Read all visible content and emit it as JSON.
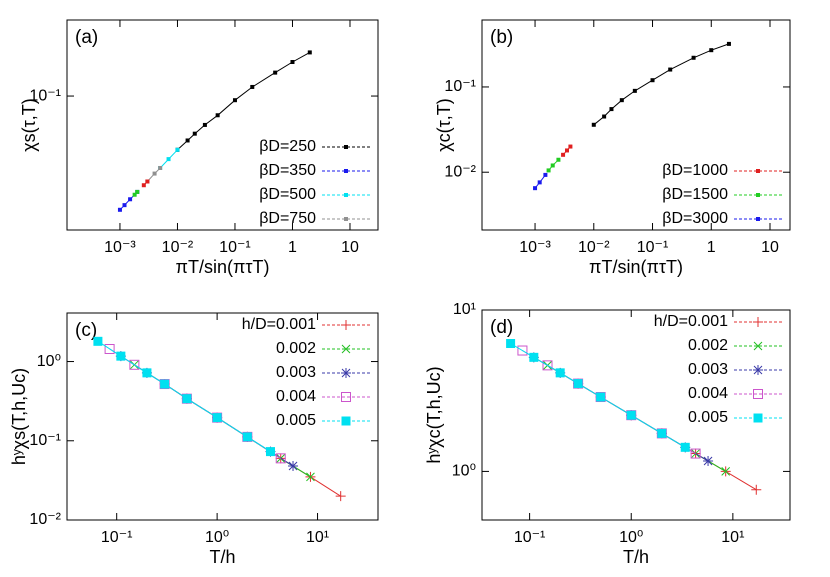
{
  "chart_data": [
    {
      "type": "line",
      "label": "(a)",
      "xlabel": "πT/sin(πτT)",
      "ylabel": "χs(τ,T)",
      "xscale": "log",
      "yscale": "log",
      "xlim": [
        0.00012,
        30.7
      ],
      "ylim": [
        0.0068,
        0.46
      ],
      "xticks": [
        {
          "value": 0.001,
          "label": "10⁻³"
        },
        {
          "value": 0.01,
          "label": "10⁻²"
        },
        {
          "value": 0.1,
          "label": "10⁻¹"
        },
        1,
        10
      ],
      "yticks": [
        {
          "value": 0.1,
          "label": "10⁻¹"
        }
      ],
      "legend": "lower right",
      "series": [
        {
          "name": "βD=250",
          "color": "#000000",
          "marker": "square",
          "x": [
            0.01,
            0.015,
            0.02,
            0.03,
            0.05,
            0.1,
            0.2,
            0.5,
            1,
            2
          ],
          "values": [
            0.034,
            0.041,
            0.047,
            0.056,
            0.068,
            0.092,
            0.12,
            0.16,
            0.198,
            0.24
          ]
        },
        {
          "name": "βD=350",
          "color": "#1a1aee",
          "marker": "square",
          "x": [
            0.001,
            0.0012,
            0.0015,
            0.002
          ],
          "values": [
            0.0102,
            0.0112,
            0.0126,
            0.0146
          ]
        },
        {
          "name": "βD=500",
          "color": "#00e0f0",
          "marker": "square",
          "x": [
            0.005,
            0.007,
            0.01
          ],
          "values": [
            0.0236,
            0.0282,
            0.034
          ]
        },
        {
          "name": "βD=750",
          "color": "#909090",
          "marker": "square",
          "x": [
            0.003,
            0.004,
            0.005
          ],
          "values": [
            0.018,
            0.0211,
            0.0236
          ]
        },
        {
          "color": "#22cc22",
          "marker": "square",
          "x": [
            0.0018,
            0.002
          ],
          "values": [
            0.0138,
            0.0146
          ]
        },
        {
          "color": "#e02020",
          "marker": "square",
          "x": [
            0.0026,
            0.003
          ],
          "values": [
            0.0167,
            0.018
          ]
        }
      ]
    },
    {
      "type": "line",
      "label": "(b)",
      "xlabel": "πT/sin(πτT)",
      "ylabel": "χc(τ,T)",
      "xscale": "log",
      "yscale": "log",
      "xlim": [
        0.000125,
        21.9
      ],
      "ylim": [
        0.0021,
        0.61
      ],
      "xticks": [
        {
          "value": 0.001,
          "label": "10⁻³"
        },
        {
          "value": 0.01,
          "label": "10⁻²"
        },
        {
          "value": 0.1,
          "label": "10⁻¹"
        },
        1,
        10
      ],
      "yticks": [
        {
          "value": 0.01,
          "label": "10⁻²"
        },
        {
          "value": 0.1,
          "label": "10⁻¹"
        }
      ],
      "legend": "lower right",
      "series": [
        {
          "color": "#000000",
          "marker": "square",
          "x": [
            0.01,
            0.015,
            0.02,
            0.03,
            0.05,
            0.1,
            0.2,
            0.5,
            1,
            2
          ],
          "values": [
            0.036,
            0.045,
            0.055,
            0.07,
            0.09,
            0.12,
            0.16,
            0.22,
            0.27,
            0.32
          ]
        },
        {
          "name": "βD=1000",
          "color": "#e02020",
          "marker": "square",
          "x": [
            0.003,
            0.0035,
            0.004
          ],
          "values": [
            0.016,
            0.018,
            0.02
          ]
        },
        {
          "name": "βD=1500",
          "color": "#22cc22",
          "marker": "square",
          "x": [
            0.0017,
            0.002,
            0.0025
          ],
          "values": [
            0.0105,
            0.012,
            0.014
          ]
        },
        {
          "name": "βD=3000",
          "color": "#1a1aee",
          "marker": "square",
          "x": [
            0.001,
            0.0012,
            0.0015
          ],
          "values": [
            0.0065,
            0.0076,
            0.0093
          ]
        }
      ]
    },
    {
      "type": "line",
      "label": "(c)",
      "xlabel": "T/h",
      "ylabel": "hʸχs(T,h,Uc)",
      "xscale": "log",
      "yscale": "log",
      "xlim": [
        0.032,
        40
      ],
      "ylim": [
        0.01,
        4.1
      ],
      "xticks": [
        {
          "value": 0.1,
          "label": "10⁻¹"
        },
        {
          "value": 1,
          "label": "10⁰"
        },
        {
          "value": 10,
          "label": "10¹"
        }
      ],
      "yticks": [
        {
          "value": 0.01,
          "label": "10⁻²"
        },
        {
          "value": 0.1,
          "label": "10⁻¹"
        },
        {
          "value": 1,
          "label": "10⁰"
        }
      ],
      "legend": "upper right",
      "series": [
        {
          "name": "h/D=0.001",
          "color": "#e03030",
          "marker": "plus",
          "x": [
            0.3,
            0.5,
            1,
            2,
            4.3,
            8.5,
            17
          ],
          "values": [
            0.52,
            0.34,
            0.196,
            0.112,
            0.06,
            0.035,
            0.02
          ]
        },
        {
          "name": "0.002",
          "color": "#22c022",
          "marker": "cross",
          "x": [
            0.15,
            0.3,
            0.5,
            1,
            2,
            4.3,
            8.5
          ],
          "values": [
            0.91,
            0.52,
            0.34,
            0.196,
            0.112,
            0.06,
            0.035
          ]
        },
        {
          "name": "0.003",
          "color": "#3a3aa8",
          "marker": "star",
          "x": [
            0.11,
            0.2,
            0.3,
            0.5,
            1,
            2,
            3.4,
            5.7
          ],
          "values": [
            1.17,
            0.72,
            0.52,
            0.34,
            0.196,
            0.112,
            0.073,
            0.048
          ]
        },
        {
          "name": "0.004",
          "color": "#cc55cc",
          "marker": "open-square",
          "x": [
            0.085,
            0.15,
            0.3,
            0.5,
            1,
            2,
            4.3
          ],
          "values": [
            1.44,
            0.91,
            0.52,
            0.34,
            0.196,
            0.112,
            0.06
          ]
        },
        {
          "name": "0.005",
          "color": "#00e0f0",
          "marker": "filled-square",
          "x": [
            0.065,
            0.11,
            0.2,
            0.3,
            0.5,
            1,
            2,
            3.4
          ],
          "values": [
            1.8,
            1.17,
            0.72,
            0.52,
            0.34,
            0.196,
            0.112,
            0.073
          ]
        }
      ]
    },
    {
      "type": "line",
      "label": "(d)",
      "xlabel": "T/h",
      "ylabel": "hʸχc(T,h,Uc)",
      "xscale": "log",
      "yscale": "log",
      "xlim": [
        0.034,
        36.5
      ],
      "ylim": [
        0.5,
        10
      ],
      "xticks": [
        {
          "value": 0.1,
          "label": "10⁻¹"
        },
        {
          "value": 1,
          "label": "10⁰"
        },
        {
          "value": 10,
          "label": "10¹"
        }
      ],
      "yticks": [
        {
          "value": 1,
          "label": "10⁰"
        },
        {
          "value": 10,
          "label": "10¹"
        }
      ],
      "legend": "upper right",
      "series": [
        {
          "name": "h/D=0.001",
          "color": "#e03030",
          "marker": "plus",
          "x": [
            0.3,
            0.5,
            1,
            2,
            4.3,
            8.5,
            17
          ],
          "values": [
            3.5,
            2.89,
            2.23,
            1.72,
            1.29,
            1.0,
            0.77
          ]
        },
        {
          "name": "0.002",
          "color": "#22c022",
          "marker": "cross",
          "x": [
            0.15,
            0.3,
            0.5,
            1,
            2,
            4.3,
            8.5
          ],
          "values": [
            4.54,
            3.5,
            2.89,
            2.23,
            1.72,
            1.29,
            1.0
          ]
        },
        {
          "name": "0.003",
          "color": "#3a3aa8",
          "marker": "star",
          "x": [
            0.11,
            0.2,
            0.3,
            0.5,
            1,
            2,
            3.4,
            5.7
          ],
          "values": [
            5.09,
            4.08,
            3.5,
            2.89,
            2.23,
            1.72,
            1.41,
            1.16
          ]
        },
        {
          "name": "0.004",
          "color": "#cc55cc",
          "marker": "open-square",
          "x": [
            0.085,
            0.15,
            0.3,
            0.5,
            1,
            2,
            4.3
          ],
          "values": [
            5.61,
            4.54,
            3.5,
            2.89,
            2.23,
            1.72,
            1.29
          ]
        },
        {
          "name": "0.005",
          "color": "#00e0f0",
          "marker": "filled-square",
          "x": [
            0.065,
            0.11,
            0.2,
            0.3,
            0.5,
            1,
            2,
            3.4
          ],
          "values": [
            6.2,
            5.09,
            4.08,
            3.5,
            2.89,
            2.23,
            1.72,
            1.41
          ]
        }
      ]
    }
  ]
}
